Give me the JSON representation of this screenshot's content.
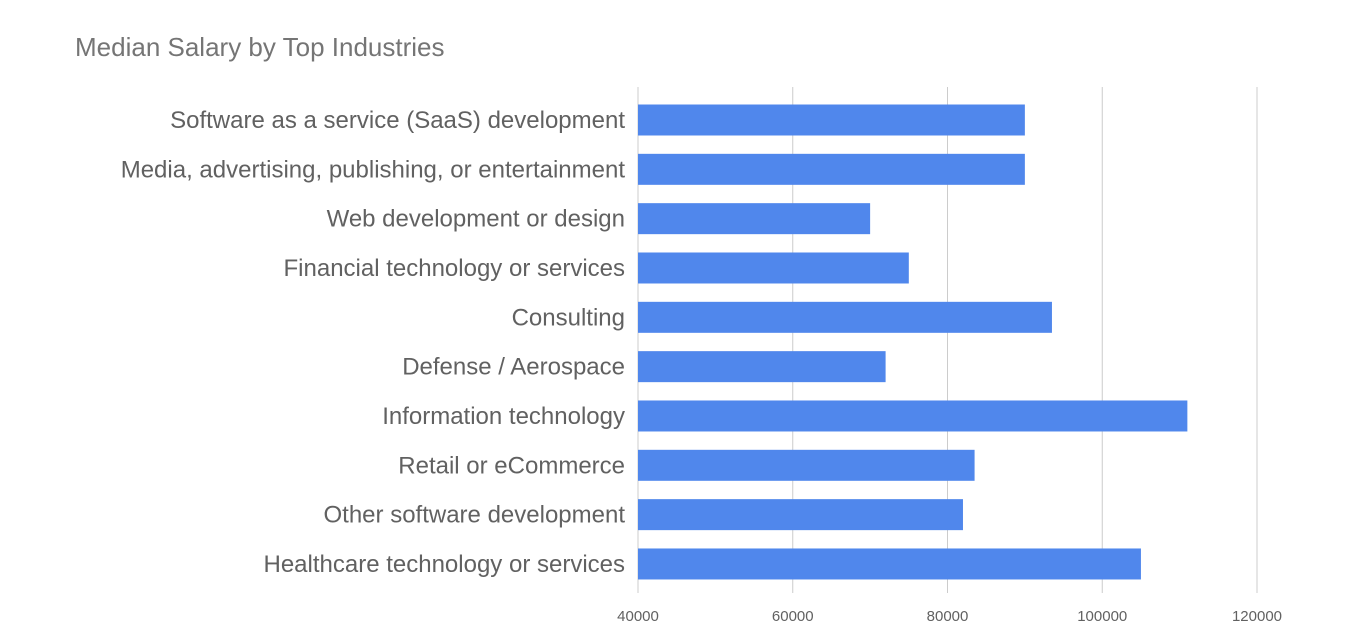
{
  "chart_data": {
    "type": "bar",
    "orientation": "horizontal",
    "title": "Median Salary by Top Industries",
    "xlabel": "",
    "ylabel": "",
    "categories": [
      "Software as a service (SaaS) development",
      "Media, advertising, publishing, or entertainment",
      "Web development or design",
      "Financial technology or services",
      "Consulting",
      "Defense / Aerospace",
      "Information technology",
      "Retail or eCommerce",
      "Other software development",
      "Healthcare technology or services"
    ],
    "values": [
      90000,
      90000,
      70000,
      75000,
      93500,
      72000,
      111000,
      83500,
      82000,
      105000
    ],
    "xlim": [
      40000,
      120000
    ],
    "xticks": [
      "40000",
      "60000",
      "80000",
      "100000",
      "120000"
    ],
    "grid": true,
    "legend": "none",
    "colors": {
      "bar": "#5087EC",
      "grid": "#CCCCCC",
      "text": "#616161",
      "title": "#757575"
    }
  }
}
